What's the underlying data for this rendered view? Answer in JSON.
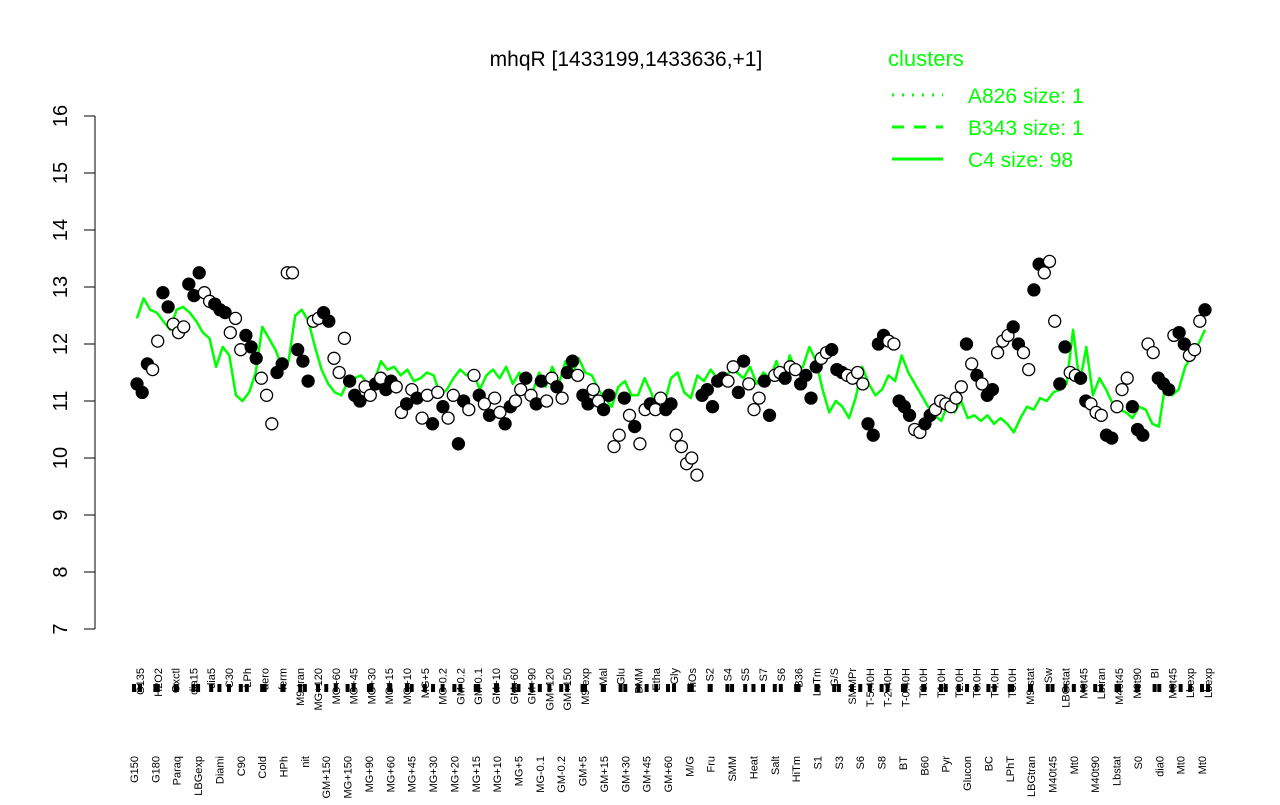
{
  "chart_data": {
    "type": "line",
    "title": "mhqR [1433199,1433636,+1]",
    "xlabel": "",
    "ylabel": "",
    "ylim": [
      7,
      16
    ],
    "yticks": [
      7,
      8,
      9,
      10,
      11,
      12,
      13,
      14,
      15,
      16
    ],
    "grid": false,
    "legend": {
      "title": "clusters",
      "placement": "top-right",
      "color": "#00ff00",
      "entries": [
        {
          "label": "A826 size: 1",
          "style": "dotted"
        },
        {
          "label": "B343 size: 1",
          "style": "dashed"
        },
        {
          "label": "C4 size: 98",
          "style": "solid"
        }
      ]
    },
    "line_color": "#00ff00",
    "tick_labels_top": [
      "G135",
      "H2O2",
      "Oxctl",
      "dia15",
      "dia5",
      "C30",
      "LPh",
      "aero",
      "ferm",
      "M9-tran",
      "MG+120",
      "MG+60",
      "MG+45",
      "MG+30",
      "MG+15",
      "MG+10",
      "MG+5",
      "MG-0.2",
      "GM-0.2",
      "GM-0.1",
      "GM+10",
      "GM+60",
      "GM+90",
      "GM+120",
      "GM+150",
      "M9-exp",
      "Mal",
      "Glu",
      "BMM",
      "Etha",
      "Gly",
      "HiOs",
      "S2",
      "S4",
      "S5",
      "S7",
      "S6",
      "B36",
      "LoTm",
      "G/S",
      "SMMPr",
      "T-5.40H",
      "T-2.40H",
      "T-0.40H",
      "T0.0H",
      "T1.0H",
      "T2.0H",
      "T3.0H",
      "T4.0H",
      "T5.0H",
      "M9-stat",
      "Sw",
      "LBGstat",
      "M0t45",
      "Lbtran",
      "M40t45",
      "M0t90",
      "BI",
      "M0t45",
      "Lbexp",
      "Lbexp"
    ],
    "tick_labels_bottom": [
      "G150",
      "G180",
      "Paraq",
      "LBGexp",
      "Diami",
      "C90",
      "Cold",
      "HPh",
      "nit",
      "GM+150",
      "MG+150",
      "MG+90",
      "MG+60",
      "MG+45",
      "MG+30",
      "MG+20",
      "MG+15",
      "MG+10",
      "MG+5",
      "MG-0.1",
      "GM-0.2",
      "GM+5",
      "GM+15",
      "GM+30",
      "GM+45",
      "GM+60",
      "M/G",
      "Fru",
      "SMM",
      "Heat",
      "Salt",
      "HiTm",
      "S1",
      "S3",
      "S6",
      "S8",
      "BT",
      "B60",
      "Pyr",
      "Glucon",
      "BC",
      "LPhT",
      "LBGtran",
      "M40t45",
      "Mt0",
      "M40t90",
      "Lbstat",
      "S0",
      "dia0",
      "Mt0",
      "Mt0"
    ],
    "series": [
      {
        "style": "solid",
        "values": [
          12.45,
          12.8,
          12.6,
          12.55,
          12.4,
          12.25,
          12.6,
          12.65,
          12.55,
          12.4,
          12.2,
          12.1,
          11.6,
          11.95,
          11.8,
          11.1,
          11.0,
          11.15,
          11.5,
          12.3,
          12.1,
          11.9,
          11.6,
          11.7,
          12.5,
          12.6,
          12.4,
          11.95,
          11.55,
          11.3,
          11.15,
          11.1,
          11.35,
          11.4,
          11.45,
          11.3,
          11.35,
          11.7,
          11.55,
          11.6,
          11.45,
          11.55,
          11.35,
          11.4,
          11.5,
          11.45,
          11.1,
          11.2,
          11.4,
          11.55,
          11.45,
          11.5,
          11.2,
          11.45,
          11.55,
          11.4,
          11.6,
          11.3,
          11.5,
          11.1,
          11.15,
          11.5,
          11.25,
          11.6,
          11.3,
          11.7,
          11.45,
          11.75,
          11.5,
          11.45,
          11.2,
          11.05,
          10.9,
          11.25,
          11.35,
          11.1,
          11.1,
          11.4,
          11.15,
          10.8,
          10.95,
          11.4,
          11.5,
          11.15,
          11.05,
          11.45,
          11.35,
          11.55,
          11.4,
          11.3,
          11.55,
          11.5,
          11.4,
          11.6,
          11.3,
          11.5,
          11.4,
          11.7,
          11.3,
          11.8,
          11.5,
          11.6,
          11.95,
          11.7,
          11.2,
          10.8,
          11.0,
          10.9,
          10.7,
          11.05,
          11.6,
          11.3,
          11.1,
          11.2,
          11.45,
          11.35,
          11.8,
          11.5,
          11.3,
          11.1,
          10.9,
          10.75,
          10.65,
          10.95,
          10.8,
          11.0,
          10.7,
          10.75,
          10.65,
          10.75,
          10.6,
          10.7,
          10.6,
          10.45,
          10.7,
          10.9,
          10.85,
          11.05,
          11.0,
          11.15,
          11.2,
          11.3,
          12.25,
          11.3,
          11.95,
          11.1,
          11.4,
          11.2,
          10.95,
          10.85,
          10.8,
          10.7,
          10.9,
          10.85,
          10.6,
          10.55,
          11.3,
          11.1,
          11.2,
          11.6,
          11.8,
          12.0,
          12.25
        ]
      }
    ],
    "points": [
      {
        "y": 11.3,
        "f": 1
      },
      {
        "y": 11.15,
        "f": 1
      },
      {
        "y": 11.65,
        "f": 1
      },
      {
        "y": 11.55,
        "f": 0
      },
      {
        "y": 12.05,
        "f": 0
      },
      {
        "y": 12.9,
        "f": 1
      },
      {
        "y": 12.65,
        "f": 1
      },
      {
        "y": 12.35,
        "f": 0
      },
      {
        "y": 12.2,
        "f": 0
      },
      {
        "y": 12.3,
        "f": 0
      },
      {
        "y": 13.05,
        "f": 1
      },
      {
        "y": 12.85,
        "f": 1
      },
      {
        "y": 13.25,
        "f": 1
      },
      {
        "y": 12.9,
        "f": 0
      },
      {
        "y": 12.75,
        "f": 0
      },
      {
        "y": 12.7,
        "f": 1
      },
      {
        "y": 12.6,
        "f": 1
      },
      {
        "y": 12.55,
        "f": 1
      },
      {
        "y": 12.2,
        "f": 0
      },
      {
        "y": 12.45,
        "f": 0
      },
      {
        "y": 11.9,
        "f": 0
      },
      {
        "y": 12.15,
        "f": 1
      },
      {
        "y": 11.95,
        "f": 1
      },
      {
        "y": 11.75,
        "f": 1
      },
      {
        "y": 11.4,
        "f": 0
      },
      {
        "y": 11.1,
        "f": 0
      },
      {
        "y": 10.6,
        "f": 0
      },
      {
        "y": 11.5,
        "f": 1
      },
      {
        "y": 11.65,
        "f": 1
      },
      {
        "y": 13.25,
        "f": 0
      },
      {
        "y": 13.25,
        "f": 0
      },
      {
        "y": 11.9,
        "f": 1
      },
      {
        "y": 11.7,
        "f": 1
      },
      {
        "y": 11.35,
        "f": 1
      },
      {
        "y": 12.4,
        "f": 0
      },
      {
        "y": 12.45,
        "f": 0
      },
      {
        "y": 12.55,
        "f": 1
      },
      {
        "y": 12.4,
        "f": 1
      },
      {
        "y": 11.75,
        "f": 0
      },
      {
        "y": 11.5,
        "f": 0
      },
      {
        "y": 12.1,
        "f": 0
      },
      {
        "y": 11.35,
        "f": 1
      },
      {
        "y": 11.1,
        "f": 1
      },
      {
        "y": 11.0,
        "f": 1
      },
      {
        "y": 11.25,
        "f": 0
      },
      {
        "y": 11.1,
        "f": 0
      },
      {
        "y": 11.3,
        "f": 1
      },
      {
        "y": 11.4,
        "f": 0
      },
      {
        "y": 11.2,
        "f": 1
      },
      {
        "y": 11.35,
        "f": 1
      },
      {
        "y": 11.25,
        "f": 0
      },
      {
        "y": 10.8,
        "f": 0
      },
      {
        "y": 10.95,
        "f": 1
      },
      {
        "y": 11.2,
        "f": 0
      },
      {
        "y": 11.05,
        "f": 1
      },
      {
        "y": 10.7,
        "f": 0
      },
      {
        "y": 11.1,
        "f": 0
      },
      {
        "y": 10.6,
        "f": 1
      },
      {
        "y": 11.15,
        "f": 0
      },
      {
        "y": 10.9,
        "f": 1
      },
      {
        "y": 10.7,
        "f": 0
      },
      {
        "y": 11.1,
        "f": 0
      },
      {
        "y": 10.25,
        "f": 1
      },
      {
        "y": 11.0,
        "f": 1
      },
      {
        "y": 10.85,
        "f": 0
      },
      {
        "y": 11.45,
        "f": 0
      },
      {
        "y": 11.1,
        "f": 1
      },
      {
        "y": 10.95,
        "f": 0
      },
      {
        "y": 10.75,
        "f": 1
      },
      {
        "y": 11.05,
        "f": 0
      },
      {
        "y": 10.8,
        "f": 0
      },
      {
        "y": 10.6,
        "f": 1
      },
      {
        "y": 10.9,
        "f": 1
      },
      {
        "y": 11.0,
        "f": 0
      },
      {
        "y": 11.2,
        "f": 0
      },
      {
        "y": 11.4,
        "f": 1
      },
      {
        "y": 11.1,
        "f": 0
      },
      {
        "y": 10.95,
        "f": 1
      },
      {
        "y": 11.35,
        "f": 1
      },
      {
        "y": 11.0,
        "f": 0
      },
      {
        "y": 11.4,
        "f": 0
      },
      {
        "y": 11.25,
        "f": 1
      },
      {
        "y": 11.05,
        "f": 0
      },
      {
        "y": 11.5,
        "f": 1
      },
      {
        "y": 11.7,
        "f": 1
      },
      {
        "y": 11.45,
        "f": 0
      },
      {
        "y": 11.1,
        "f": 1
      },
      {
        "y": 10.95,
        "f": 1
      },
      {
        "y": 11.2,
        "f": 0
      },
      {
        "y": 11.0,
        "f": 0
      },
      {
        "y": 10.85,
        "f": 1
      },
      {
        "y": 11.1,
        "f": 1
      },
      {
        "y": 10.2,
        "f": 0
      },
      {
        "y": 10.4,
        "f": 0
      },
      {
        "y": 11.05,
        "f": 1
      },
      {
        "y": 10.75,
        "f": 0
      },
      {
        "y": 10.55,
        "f": 1
      },
      {
        "y": 10.25,
        "f": 0
      },
      {
        "y": 10.85,
        "f": 0
      },
      {
        "y": 10.95,
        "f": 1
      },
      {
        "y": 10.85,
        "f": 0
      },
      {
        "y": 11.05,
        "f": 0
      },
      {
        "y": 10.85,
        "f": 1
      },
      {
        "y": 10.95,
        "f": 1
      },
      {
        "y": 10.4,
        "f": 0
      },
      {
        "y": 10.2,
        "f": 0
      },
      {
        "y": 9.9,
        "f": 0
      },
      {
        "y": 10.0,
        "f": 0
      },
      {
        "y": 9.7,
        "f": 0
      },
      {
        "y": 11.1,
        "f": 1
      },
      {
        "y": 11.2,
        "f": 1
      },
      {
        "y": 10.9,
        "f": 1
      },
      {
        "y": 11.35,
        "f": 1
      },
      {
        "y": 11.4,
        "f": 1
      },
      {
        "y": 11.35,
        "f": 0
      },
      {
        "y": 11.6,
        "f": 0
      },
      {
        "y": 11.15,
        "f": 1
      },
      {
        "y": 11.7,
        "f": 1
      },
      {
        "y": 11.3,
        "f": 0
      },
      {
        "y": 10.85,
        "f": 0
      },
      {
        "y": 11.05,
        "f": 0
      },
      {
        "y": 11.35,
        "f": 1
      },
      {
        "y": 10.75,
        "f": 1
      },
      {
        "y": 11.45,
        "f": 0
      },
      {
        "y": 11.5,
        "f": 0
      },
      {
        "y": 11.4,
        "f": 1
      },
      {
        "y": 11.6,
        "f": 0
      },
      {
        "y": 11.55,
        "f": 0
      },
      {
        "y": 11.3,
        "f": 1
      },
      {
        "y": 11.45,
        "f": 1
      },
      {
        "y": 11.05,
        "f": 1
      },
      {
        "y": 11.6,
        "f": 1
      },
      {
        "y": 11.75,
        "f": 0
      },
      {
        "y": 11.85,
        "f": 0
      },
      {
        "y": 11.9,
        "f": 1
      },
      {
        "y": 11.55,
        "f": 1
      },
      {
        "y": 11.5,
        "f": 1
      },
      {
        "y": 11.45,
        "f": 0
      },
      {
        "y": 11.4,
        "f": 0
      },
      {
        "y": 11.5,
        "f": 0
      },
      {
        "y": 11.3,
        "f": 0
      },
      {
        "y": 10.6,
        "f": 1
      },
      {
        "y": 10.4,
        "f": 1
      },
      {
        "y": 12.0,
        "f": 1
      },
      {
        "y": 12.15,
        "f": 1
      },
      {
        "y": 12.05,
        "f": 0
      },
      {
        "y": 12.0,
        "f": 0
      },
      {
        "y": 11.0,
        "f": 1
      },
      {
        "y": 10.9,
        "f": 1
      },
      {
        "y": 10.75,
        "f": 1
      },
      {
        "y": 10.5,
        "f": 0
      },
      {
        "y": 10.45,
        "f": 0
      },
      {
        "y": 10.6,
        "f": 1
      },
      {
        "y": 10.75,
        "f": 1
      },
      {
        "y": 10.85,
        "f": 0
      },
      {
        "y": 11.0,
        "f": 0
      },
      {
        "y": 10.95,
        "f": 0
      },
      {
        "y": 10.9,
        "f": 0
      },
      {
        "y": 11.05,
        "f": 0
      },
      {
        "y": 11.25,
        "f": 0
      },
      {
        "y": 12.0,
        "f": 1
      },
      {
        "y": 11.65,
        "f": 0
      },
      {
        "y": 11.45,
        "f": 1
      },
      {
        "y": 11.3,
        "f": 0
      },
      {
        "y": 11.1,
        "f": 1
      },
      {
        "y": 11.2,
        "f": 1
      },
      {
        "y": 11.85,
        "f": 0
      },
      {
        "y": 12.05,
        "f": 0
      },
      {
        "y": 12.15,
        "f": 0
      },
      {
        "y": 12.3,
        "f": 1
      },
      {
        "y": 12.0,
        "f": 1
      },
      {
        "y": 11.85,
        "f": 0
      },
      {
        "y": 11.55,
        "f": 0
      },
      {
        "y": 12.95,
        "f": 1
      },
      {
        "y": 13.4,
        "f": 1
      },
      {
        "y": 13.25,
        "f": 0
      },
      {
        "y": 13.45,
        "f": 0
      },
      {
        "y": 12.4,
        "f": 0
      },
      {
        "y": 11.3,
        "f": 1
      },
      {
        "y": 11.95,
        "f": 1
      },
      {
        "y": 11.5,
        "f": 0
      },
      {
        "y": 11.45,
        "f": 0
      },
      {
        "y": 11.4,
        "f": 1
      },
      {
        "y": 11.0,
        "f": 1
      },
      {
        "y": 10.95,
        "f": 0
      },
      {
        "y": 10.8,
        "f": 0
      },
      {
        "y": 10.75,
        "f": 0
      },
      {
        "y": 10.4,
        "f": 1
      },
      {
        "y": 10.35,
        "f": 1
      },
      {
        "y": 10.9,
        "f": 0
      },
      {
        "y": 11.2,
        "f": 0
      },
      {
        "y": 11.4,
        "f": 0
      },
      {
        "y": 10.9,
        "f": 1
      },
      {
        "y": 10.5,
        "f": 1
      },
      {
        "y": 10.4,
        "f": 1
      },
      {
        "y": 12.0,
        "f": 0
      },
      {
        "y": 11.85,
        "f": 0
      },
      {
        "y": 11.4,
        "f": 1
      },
      {
        "y": 11.3,
        "f": 1
      },
      {
        "y": 11.2,
        "f": 1
      },
      {
        "y": 12.15,
        "f": 0
      },
      {
        "y": 12.2,
        "f": 1
      },
      {
        "y": 12.0,
        "f": 1
      },
      {
        "y": 11.8,
        "f": 0
      },
      {
        "y": 11.9,
        "f": 0
      },
      {
        "y": 12.4,
        "f": 0
      },
      {
        "y": 12.6,
        "f": 1
      }
    ]
  }
}
